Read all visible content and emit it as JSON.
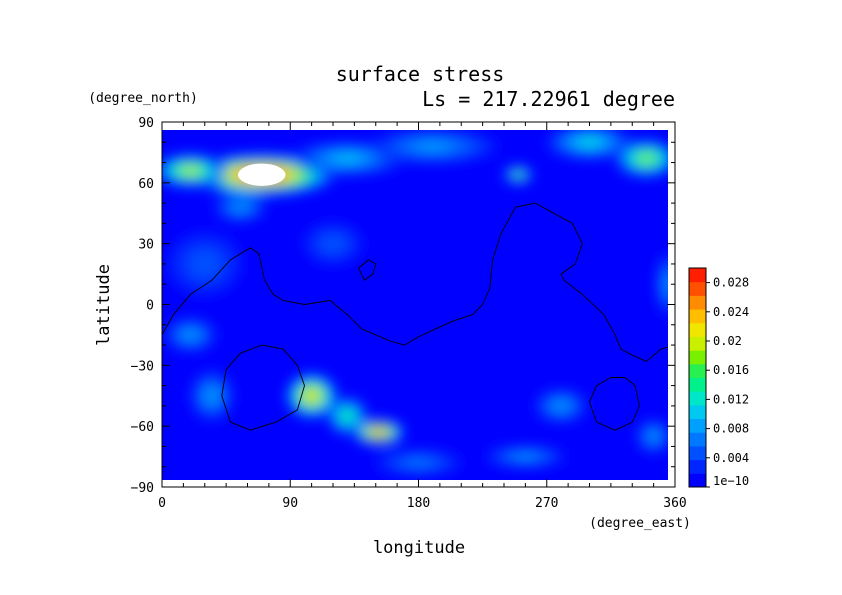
{
  "chart_data": {
    "type": "heatmap",
    "title": "surface stress",
    "subtitle": "Ls = 217.22961 degree",
    "xlabel": "longitude",
    "ylabel": "latitude",
    "x_unit": "(degree_east)",
    "y_unit": "(degree_north)",
    "xlim": [
      0,
      360
    ],
    "ylim": [
      -90,
      90
    ],
    "x_ticks": [
      "0",
      "90",
      "180",
      "270",
      "360"
    ],
    "y_ticks": [
      "90",
      "60",
      "30",
      "0",
      "−30",
      "−60",
      "−90"
    ],
    "colorbar": {
      "min": 0,
      "max": 0.03,
      "tick_labels": [
        "1e−10",
        "0.004",
        "0.008",
        "0.012",
        "0.016",
        "0.02",
        "0.024",
        "0.028"
      ],
      "colors": [
        "#0000ff",
        "#0026ff",
        "#0050ff",
        "#0078ff",
        "#00a0ff",
        "#00c8f0",
        "#00e6c8",
        "#00f08c",
        "#28f050",
        "#78f000",
        "#c8f000",
        "#f0e600",
        "#ffbe00",
        "#ff8c00",
        "#ff5000",
        "#ff1e00"
      ]
    },
    "hotspots": [
      {
        "lon": 70,
        "lat": 64,
        "value": 0.034,
        "rx": 52,
        "ry": 10
      },
      {
        "lon": 20,
        "lat": 66,
        "value": 0.021,
        "rx": 25,
        "ry": 8
      },
      {
        "lon": 340,
        "lat": 72,
        "value": 0.02,
        "rx": 22,
        "ry": 9
      },
      {
        "lon": 250,
        "lat": 64,
        "value": 0.02,
        "rx": 10,
        "ry": 4
      },
      {
        "lon": 130,
        "lat": 72,
        "value": 0.011,
        "rx": 40,
        "ry": 8
      },
      {
        "lon": 190,
        "lat": 78,
        "value": 0.009,
        "rx": 45,
        "ry": 8
      },
      {
        "lon": 300,
        "lat": 80,
        "value": 0.012,
        "rx": 30,
        "ry": 8
      },
      {
        "lon": 55,
        "lat": 48,
        "value": 0.008,
        "rx": 18,
        "ry": 7
      },
      {
        "lon": 105,
        "lat": -45,
        "value": 0.025,
        "rx": 18,
        "ry": 11
      },
      {
        "lon": 152,
        "lat": -63,
        "value": 0.03,
        "rx": 18,
        "ry": 6
      },
      {
        "lon": 130,
        "lat": -55,
        "value": 0.015,
        "rx": 14,
        "ry": 9
      },
      {
        "lon": 20,
        "lat": -15,
        "value": 0.009,
        "rx": 18,
        "ry": 8
      },
      {
        "lon": 35,
        "lat": -45,
        "value": 0.008,
        "rx": 15,
        "ry": 12
      },
      {
        "lon": 280,
        "lat": -50,
        "value": 0.009,
        "rx": 18,
        "ry": 8
      },
      {
        "lon": 345,
        "lat": -65,
        "value": 0.009,
        "rx": 12,
        "ry": 8
      },
      {
        "lon": 255,
        "lat": -75,
        "value": 0.008,
        "rx": 28,
        "ry": 5
      },
      {
        "lon": 180,
        "lat": -78,
        "value": 0.006,
        "rx": 30,
        "ry": 6
      },
      {
        "lon": 355,
        "lat": 10,
        "value": 0.008,
        "rx": 8,
        "ry": 15
      },
      {
        "lon": 30,
        "lat": 20,
        "value": 0.005,
        "rx": 25,
        "ry": 15
      },
      {
        "lon": 120,
        "lat": 30,
        "value": 0.005,
        "rx": 20,
        "ry": 10
      }
    ],
    "contours": [
      {
        "lon": [
          0,
          8,
          20,
          35,
          48,
          62,
          68,
          72,
          78,
          85,
          100,
          118,
          130,
          140,
          150,
          160,
          170,
          180,
          192,
          205,
          218,
          225,
          230,
          232,
          238,
          248,
          262,
          275,
          288,
          295,
          290,
          280,
          282,
          295,
          310,
          318,
          322,
          330,
          340,
          350,
          360
        ],
        "lat": [
          -15,
          -5,
          5,
          12,
          22,
          28,
          25,
          12,
          5,
          2,
          0,
          2,
          -5,
          -12,
          -15,
          -18,
          -20,
          -16,
          -12,
          -8,
          -5,
          0,
          8,
          22,
          35,
          48,
          50,
          45,
          40,
          30,
          20,
          15,
          12,
          5,
          -5,
          -15,
          -22,
          -25,
          -28,
          -22,
          -20
        ]
      },
      {
        "lon": [
          138,
          145,
          150,
          148,
          142,
          138
        ],
        "lat": [
          18,
          22,
          20,
          15,
          12,
          18
        ]
      },
      {
        "lon": [
          70,
          85,
          95,
          100,
          95,
          80,
          62,
          48,
          42,
          45,
          55,
          70
        ],
        "lat": [
          -20,
          -22,
          -30,
          -40,
          -52,
          -58,
          -62,
          -58,
          -45,
          -32,
          -24,
          -20
        ]
      },
      {
        "lon": [
          325,
          332,
          335,
          330,
          318,
          305,
          300,
          305,
          315,
          325
        ],
        "lat": [
          -36,
          -40,
          -50,
          -58,
          -62,
          -58,
          -48,
          -40,
          -36,
          -36
        ]
      }
    ]
  }
}
